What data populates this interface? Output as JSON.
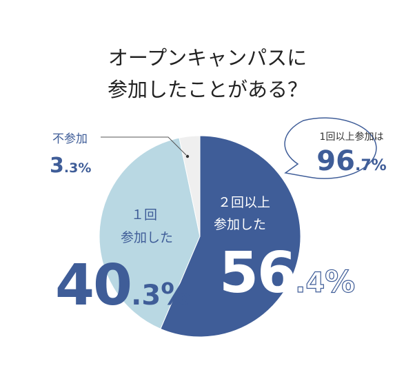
{
  "title_lines": [
    "オープンキャンパスに",
    "参加したことがある？"
  ],
  "callout": {
    "label": "1回以上参加は",
    "value_int": "96",
    "value_dec": ".7",
    "value_pct": "%"
  },
  "colors": {
    "dark": "#3f5d98",
    "light": "#b9d8e3",
    "gray": "#efefef",
    "title": "#222222"
  },
  "chart_data": {
    "type": "pie",
    "title": "オープンキャンパスに参加したことがある？",
    "slices": [
      {
        "label_lines": [
          "２回以上",
          "参加した"
        ],
        "value": 56.4,
        "int": "56",
        "dec": ".4",
        "pct": "%",
        "color": "#3f5d98"
      },
      {
        "label_lines": [
          "１回",
          "参加した"
        ],
        "value": 40.3,
        "int": "40",
        "dec": ".3",
        "pct": "%",
        "color": "#b9d8e3"
      },
      {
        "label_lines": [
          "不参加"
        ],
        "value": 3.3,
        "int": "3",
        "dec": ".3",
        "pct": "%",
        "color": "#efefef"
      }
    ]
  }
}
